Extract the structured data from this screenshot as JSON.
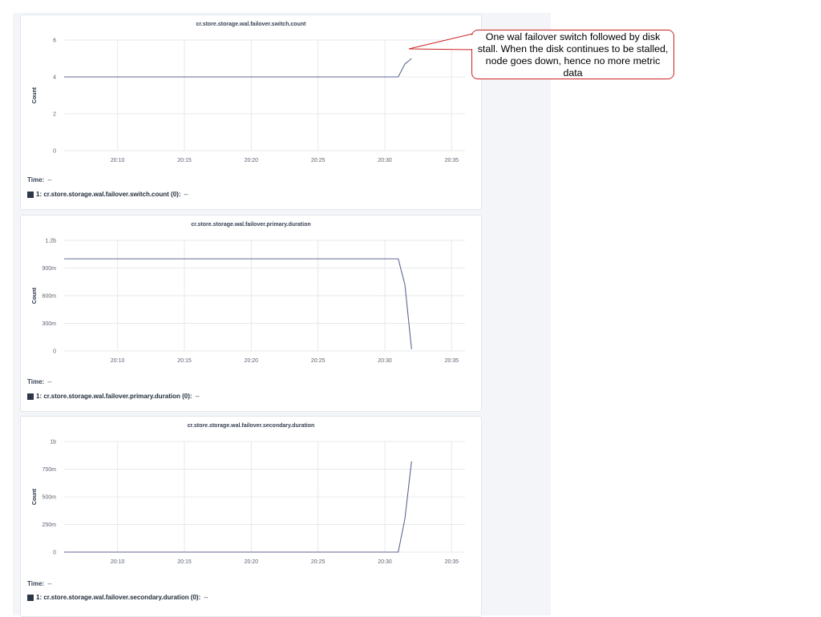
{
  "annotation": {
    "text": "One wal failover switch followed by disk stall. When the disk continues to be stalled, node goes down, hence no more metric data",
    "border_color": "#cc2222"
  },
  "series_color": "#5c6791",
  "time": {
    "label": "Time:",
    "value": "--"
  },
  "chart_data": [
    {
      "type": "line",
      "title": "cr.store.storage.wal.failover.switch.count",
      "ylabel": "Count",
      "xlabel": "",
      "x_ticks": [
        "20:10",
        "20:15",
        "20:20",
        "20:25",
        "20:30",
        "20:35"
      ],
      "y_ticks": [
        "0",
        "2",
        "4",
        "6"
      ],
      "y_tick_values": [
        0,
        2,
        4,
        6
      ],
      "ylim": [
        0,
        6
      ],
      "xlim": [
        "20:06",
        "20:36"
      ],
      "grid": true,
      "series": [
        {
          "name": "1: cr.store.storage.wal.failover.switch.count (0):",
          "legend_value": "--",
          "x": [
            "20:06",
            "20:31",
            "20:31.5",
            "20:32"
          ],
          "y": [
            4,
            4,
            4.7,
            5
          ]
        }
      ]
    },
    {
      "type": "line",
      "title": "cr.store.storage.wal.failover.primary.duration",
      "ylabel": "Count",
      "xlabel": "",
      "x_ticks": [
        "20:10",
        "20:15",
        "20:20",
        "20:25",
        "20:30",
        "20:35"
      ],
      "y_ticks": [
        "0",
        "300m",
        "600m",
        "900m",
        "1.2b"
      ],
      "y_tick_values": [
        0,
        300000000,
        600000000,
        900000000,
        1200000000
      ],
      "ylim": [
        0,
        1200000000
      ],
      "xlim": [
        "20:06",
        "20:36"
      ],
      "grid": true,
      "series": [
        {
          "name": "1: cr.store.storage.wal.failover.primary.duration (0):",
          "legend_value": "--",
          "x": [
            "20:06",
            "20:31",
            "20:31.5",
            "20:32"
          ],
          "y": [
            1000000000,
            1000000000,
            720000000,
            20000000
          ]
        }
      ]
    },
    {
      "type": "line",
      "title": "cr.store.storage.wal.failover.secondary.duration",
      "ylabel": "Count",
      "xlabel": "",
      "x_ticks": [
        "20:10",
        "20:15",
        "20:20",
        "20:25",
        "20:30",
        "20:35"
      ],
      "y_ticks": [
        "0",
        "250m",
        "500m",
        "750m",
        "1b"
      ],
      "y_tick_values": [
        0,
        250000000,
        500000000,
        750000000,
        1000000000
      ],
      "ylim": [
        0,
        1000000000
      ],
      "xlim": [
        "20:06",
        "20:36"
      ],
      "grid": true,
      "series": [
        {
          "name": "1: cr.store.storage.wal.failover.secondary.duration (0):",
          "legend_value": "--",
          "x": [
            "20:06",
            "20:31",
            "20:31.5",
            "20:32"
          ],
          "y": [
            0,
            0,
            300000000,
            820000000
          ]
        }
      ]
    }
  ]
}
